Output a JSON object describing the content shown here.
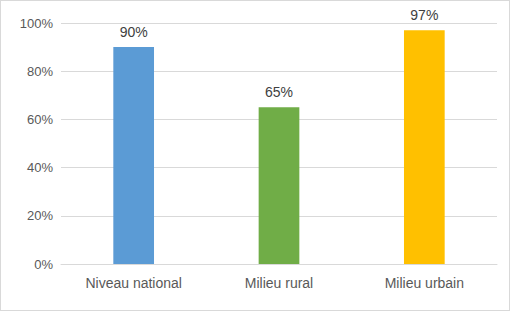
{
  "chart_data": {
    "type": "bar",
    "categories": [
      "Niveau national",
      "Milieu rural",
      "Milieu urbain"
    ],
    "values": [
      90,
      65,
      97
    ],
    "value_labels": [
      "90%",
      "65%",
      "97%"
    ],
    "colors": [
      "#5b9bd5",
      "#70ad47",
      "#ffc000"
    ],
    "ylim": [
      0,
      100
    ],
    "yticks": [
      {
        "value": 0,
        "label": "0%"
      },
      {
        "value": 20,
        "label": "20%"
      },
      {
        "value": 40,
        "label": "40%"
      },
      {
        "value": 60,
        "label": "60%"
      },
      {
        "value": 80,
        "label": "80%"
      },
      {
        "value": 100,
        "label": "100%"
      }
    ],
    "grid": true,
    "data_labels": true
  }
}
